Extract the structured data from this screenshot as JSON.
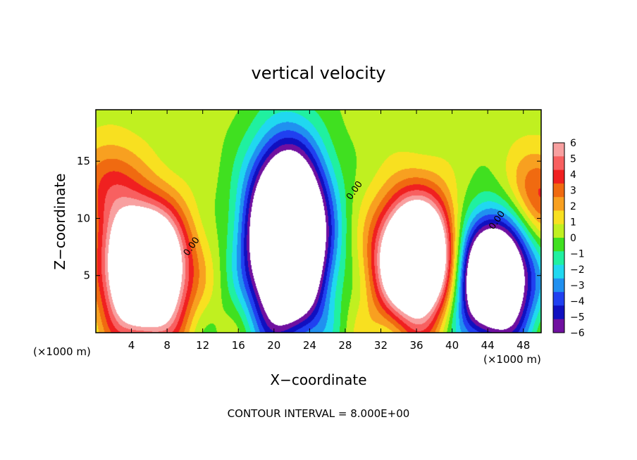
{
  "chart_data": {
    "type": "heatmap",
    "title": "vertical velocity",
    "xlabel": "X−coordinate",
    "ylabel": "Z−coordinate",
    "x_unit_left": "(×1000 m)",
    "x_unit_right": "(×1000 m)",
    "footer": "CONTOUR INTERVAL = 8.000E+00",
    "xlim": [
      0,
      50
    ],
    "ylim": [
      0,
      19.5
    ],
    "x_ticks": [
      4,
      8,
      12,
      16,
      20,
      24,
      28,
      32,
      36,
      40,
      44,
      48
    ],
    "y_ticks": [
      5,
      10,
      15
    ],
    "colorbar": {
      "min": -6,
      "max": 6,
      "tick_values": [
        6,
        5,
        4,
        3,
        2,
        1,
        0,
        -1,
        -2,
        -3,
        -4,
        -5,
        -6
      ],
      "tick_labels": [
        "6",
        "5",
        "4",
        "3",
        "2",
        "1",
        "0",
        "−1",
        "−2",
        "−3",
        "−4",
        "−5",
        "−6"
      ],
      "colors": [
        "#f8a0a0",
        "#f86060",
        "#f02020",
        "#f06a10",
        "#f8a020",
        "#f8e020",
        "#c0f020",
        "#40e020",
        "#20f0a0",
        "#20d8f0",
        "#2090f0",
        "#2040f0",
        "#1010c0",
        "#7010a0"
      ]
    },
    "contour_labels": [
      {
        "text": "0.00",
        "x": 11,
        "z": 7.4
      },
      {
        "text": "0.00",
        "x": 29.3,
        "z": 12.3
      },
      {
        "text": "0.00",
        "x": 45.3,
        "z": 9.7
      }
    ],
    "features": [
      {
        "kind": "updraft",
        "x": 5.5,
        "z": 5.5,
        "w": 16
      },
      {
        "kind": "downdraft",
        "x": 21.5,
        "z": 8.3,
        "w": -18
      },
      {
        "kind": "updraft",
        "x": 36,
        "z": 6.5,
        "w": 15
      },
      {
        "kind": "downdraft",
        "x": 44.5,
        "z": 4.8,
        "w": -14
      },
      {
        "kind": "weak-positive",
        "x": 1.5,
        "z": 13,
        "w": 3
      },
      {
        "kind": "weak-positive",
        "x": 49.5,
        "z": 12,
        "w": 3.5
      }
    ]
  }
}
